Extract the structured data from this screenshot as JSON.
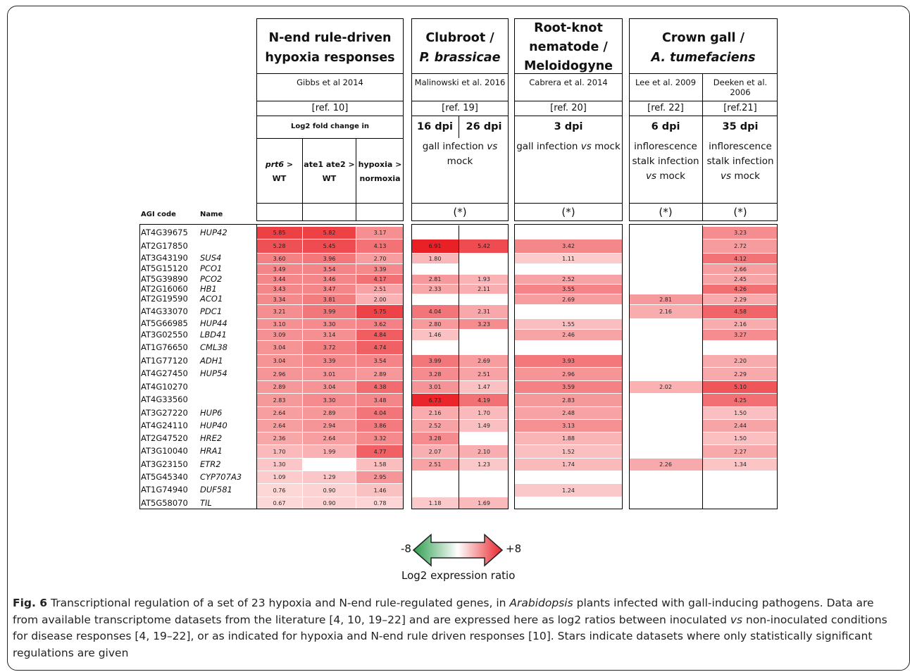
{
  "headers": {
    "g1": {
      "title": "N-end rule-driven hypoxia responses",
      "source": "Gibbs et al 2014",
      "ref": "[ref. 10]",
      "sub": "Log2 fold change in"
    },
    "g2": {
      "title_line1": "Clubroot /",
      "title_line2": "P. brassicae",
      "source": "Malinowski et al. 2016",
      "ref": "[ref. 19]",
      "dpi1": "16 dpi",
      "dpi2": "26 dpi",
      "desc_pre": "gall infection",
      "desc_vs": "vs",
      "desc_post": "mock",
      "star": "(*)"
    },
    "g3": {
      "title": "Root-knot nematode / Meloidogyne",
      "source": "Cabrera et al. 2014",
      "ref": "[ref. 20]",
      "dpi": "3 dpi",
      "desc_pre": "gall infection",
      "desc_vs": "vs",
      "desc_post": "mock",
      "star": "(*)"
    },
    "g4": {
      "title_line1": "Crown gall /",
      "title_line2": "A. tumefaciens"
    },
    "g4a": {
      "source": "Lee et al. 2009",
      "ref": "[ref. 22]",
      "dpi": "6 dpi",
      "desc_l1": "inflorescence",
      "desc_l2": "stalk infection",
      "desc_vs": "vs",
      "desc_post": "mock",
      "star": "(*)"
    },
    "g4b": {
      "source_l1": "Deeken et al.",
      "source_l2": "2006",
      "ref": "[ref.21]",
      "dpi": "35 dpi",
      "desc_l1": "inflorescence",
      "desc_l2": "stalk infection",
      "desc_vs": "vs",
      "desc_post": "mock",
      "star": "(*)"
    },
    "c1": {
      "label_it": "prt6",
      "label_rest": " >",
      "label_l2": "WT"
    },
    "c2": {
      "label_l1": "ate1 ate2 >",
      "label_l2": "WT"
    },
    "c3": {
      "label_l1": "hypoxia >",
      "label_l2": "normoxia"
    },
    "agi_label": "AGI code",
    "name_label": "Name"
  },
  "rows": [
    {
      "agi": "AT4G39675",
      "name": "HUP42",
      "v": [
        "5.85",
        "5.82",
        "3.17",
        "",
        "",
        "",
        "",
        "3.23"
      ]
    },
    {
      "agi": "AT2G17850",
      "name": "",
      "v": [
        "5.28",
        "5.45",
        "4.13",
        "6.91",
        "5.42",
        "3.42",
        "",
        "2.72"
      ]
    },
    {
      "agi": "AT3G43190",
      "name": "SUS4",
      "v": [
        "3.60",
        "3.96",
        "2.70",
        "1.80",
        "",
        "1.11",
        "",
        "4.12"
      ]
    },
    {
      "agi": "AT5G15120",
      "name": "PCO1",
      "v": [
        "3.49",
        "3.54",
        "3.39",
        "",
        "",
        "",
        "",
        "2.66"
      ]
    },
    {
      "agi": "AT5G39890",
      "name": "PCO2",
      "v": [
        "3.44",
        "3.46",
        "4.17",
        "2.81",
        "1.93",
        "2.52",
        "",
        "2.45"
      ]
    },
    {
      "agi": "AT2G16060",
      "name": "HB1",
      "v": [
        "3.43",
        "3.47",
        "2.51",
        "2.33",
        "2.11",
        "3.55",
        "",
        "4.26"
      ]
    },
    {
      "agi": "AT2G19590",
      "name": "ACO1",
      "v": [
        "3.34",
        "3.81",
        "2.00",
        "",
        "",
        "2.69",
        "2.81",
        "2.29"
      ]
    },
    {
      "agi": "AT4G33070",
      "name": "PDC1",
      "v": [
        "3.21",
        "3.99",
        "5.75",
        "4.04",
        "2.31",
        "",
        "2.16",
        "4.58"
      ]
    },
    {
      "agi": "AT5G66985",
      "name": "HUP44",
      "v": [
        "3.10",
        "3.30",
        "3.62",
        "2.80",
        "3.23",
        "1.55",
        "",
        "2.16"
      ]
    },
    {
      "agi": "AT3G02550",
      "name": "LBD41",
      "v": [
        "3.09",
        "3.14",
        "4.84",
        "1.46",
        "",
        "2.46",
        "",
        "3.27"
      ]
    },
    {
      "agi": "AT1G76650",
      "name": "CML38",
      "v": [
        "3.04",
        "3.72",
        "4.74",
        "",
        "",
        "",
        "",
        ""
      ]
    },
    {
      "agi": "AT1G77120",
      "name": "ADH1",
      "v": [
        "3.04",
        "3.39",
        "3.54",
        "3.99",
        "2.69",
        "3.93",
        "",
        "2.20"
      ]
    },
    {
      "agi": "AT4G27450",
      "name": "HUP54",
      "v": [
        "2.96",
        "3.01",
        "2.89",
        "3.28",
        "2.51",
        "2.96",
        "",
        "2.29"
      ]
    },
    {
      "agi": "AT4G10270",
      "name": "",
      "v": [
        "2.89",
        "3.04",
        "4.38",
        "3.01",
        "1.47",
        "3.59",
        "2.02",
        "5.10"
      ]
    },
    {
      "agi": "AT4G33560",
      "name": "",
      "v": [
        "2.83",
        "3.30",
        "3.48",
        "6.73",
        "4.19",
        "2.83",
        "",
        "4.25"
      ]
    },
    {
      "agi": "AT3G27220",
      "name": "HUP6",
      "v": [
        "2.64",
        "2.89",
        "4.04",
        "2.16",
        "1.70",
        "2.48",
        "",
        "1.50"
      ]
    },
    {
      "agi": "AT4G24110",
      "name": "HUP40",
      "v": [
        "2.64",
        "2.94",
        "3.86",
        "2.52",
        "1.49",
        "3.13",
        "",
        "2.44"
      ]
    },
    {
      "agi": "AT2G47520",
      "name": "HRE2",
      "v": [
        "2.36",
        "2.64",
        "3.32",
        "3.28",
        "",
        "1.88",
        "",
        "1.50"
      ]
    },
    {
      "agi": "AT3G10040",
      "name": "HRA1",
      "v": [
        "1.70",
        "1.99",
        "4.77",
        "2.07",
        "2.10",
        "1.52",
        "",
        "2.27"
      ]
    },
    {
      "agi": "AT3G23150",
      "name": "ETR2",
      "v": [
        "1.30",
        "",
        "1.58",
        "2.51",
        "1.23",
        "1.74",
        "2.26",
        "1.34"
      ]
    },
    {
      "agi": "AT5G45340",
      "name": "CYP707A3",
      "v": [
        "1.09",
        "1.29",
        "2.95",
        "",
        "",
        "",
        "",
        ""
      ]
    },
    {
      "agi": "AT1G74940",
      "name": "DUF581",
      "v": [
        "0.76",
        "0.90",
        "1.46",
        "",
        "",
        "1.24",
        "",
        ""
      ]
    },
    {
      "agi": "AT5G58070",
      "name": "TIL",
      "v": [
        "0.67",
        "0.90",
        "0.78",
        "1.18",
        "1.69",
        "",
        "",
        ""
      ]
    }
  ],
  "legend": {
    "min": "-8",
    "max": "+8",
    "label": "Log2 expression ratio",
    "low_color": "#2e9e4f",
    "high_color": "#e8252b"
  },
  "caption": {
    "fig": "Fig. 6",
    "p1": " Transcriptional regulation of a set of 23 hypoxia and N-end rule-regulated genes, in ",
    "italic1": "Arabidopsis",
    "p2": " plants infected with gall-inducing pathogens. Data are from available transcriptome datasets from the literature [4, 10, 19–22] and are expressed here as log2 ratios between inoculated ",
    "italic2": "vs",
    "p3": " non-inoculated conditions for disease responses [4, 19–22], or as indicated for hypoxia and N-end rule driven responses [10]. Stars indicate datasets where only statistically significant regulations are given"
  }
}
